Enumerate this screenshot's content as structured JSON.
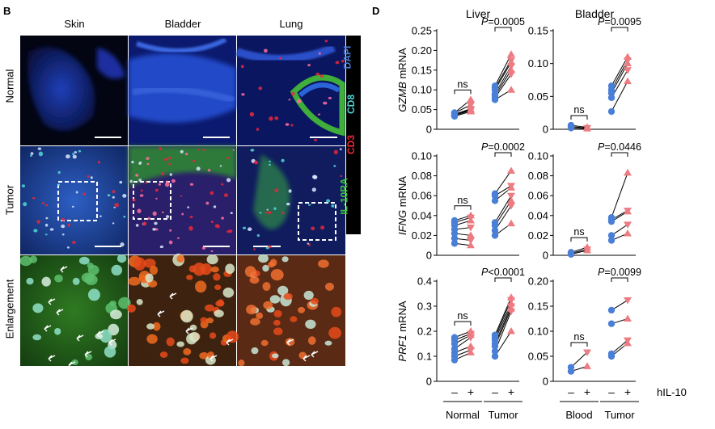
{
  "panel_b": {
    "letter": "B",
    "columns": [
      "Skin",
      "Bladder",
      "Lung"
    ],
    "rows": [
      "Normal",
      "Tumor",
      "Enlargement"
    ],
    "stains": [
      {
        "text": "DAPI",
        "color": "#4a7fd8"
      },
      {
        "text": "CD8",
        "color": "#4fd6d6"
      },
      {
        "text": "CD3",
        "color": "#e8283a"
      },
      {
        "text": "IL-10RA",
        "color": "#3ec43e"
      }
    ]
  },
  "panel_d": {
    "letter": "D",
    "column_titles": [
      "Liver",
      "Bladder"
    ],
    "treatment_label": "hIL-10",
    "minus": "–",
    "plus": "+",
    "colors": {
      "blue": "#4a7fd8",
      "red": "#ec7b82"
    }
  },
  "chart_data": [
    {
      "type": "scatter",
      "organ": "Liver",
      "gene": "GZMB",
      "ylabel_suffix": " mRNA",
      "ylim": [
        0,
        0.25
      ],
      "yticks": [
        "0",
        "0.05",
        "0.10",
        "0.15",
        "0.20",
        "0.25"
      ],
      "groups": [
        {
          "name": "Normal",
          "pvalue": "ns",
          "minus": [
            0.033,
            0.035,
            0.037,
            0.038,
            0.04,
            0.041,
            0.042
          ],
          "plus": [
            0.045,
            0.048,
            0.05,
            0.052,
            0.046,
            0.062,
            0.075
          ]
        },
        {
          "name": "Tumor",
          "pvalue": "P=0.0005",
          "minus": [
            0.075,
            0.08,
            0.085,
            0.09,
            0.1,
            0.105,
            0.11
          ],
          "plus": [
            0.1,
            0.14,
            0.15,
            0.16,
            0.17,
            0.175,
            0.19
          ]
        }
      ]
    },
    {
      "type": "scatter",
      "organ": "Bladder",
      "gene": "GZMB",
      "ylabel_suffix": " mRNA",
      "ylim": [
        0,
        0.15
      ],
      "yticks": [
        "0",
        "0.05",
        "0.10",
        "0.15"
      ],
      "groups": [
        {
          "name": "Blood",
          "pvalue": "ns",
          "minus": [
            0.002,
            0.004,
            0.006
          ],
          "plus": [
            0.001,
            0.002,
            0.003
          ]
        },
        {
          "name": "Tumor",
          "pvalue": "P=0.0095",
          "minus": [
            0.027,
            0.048,
            0.055,
            0.06,
            0.066
          ],
          "plus": [
            0.073,
            0.09,
            0.1,
            0.105,
            0.11
          ]
        }
      ]
    },
    {
      "type": "scatter",
      "organ": "Liver",
      "gene": "IFNG",
      "ylabel_suffix": " mRNA",
      "ylim": [
        0,
        0.1
      ],
      "yticks": [
        "0",
        "0.02",
        "0.04",
        "0.06",
        "0.08",
        "0.10"
      ],
      "groups": [
        {
          "name": "Normal",
          "pvalue": "ns",
          "minus": [
            0.012,
            0.017,
            0.022,
            0.026,
            0.03,
            0.033,
            0.035
          ],
          "plus": [
            0.01,
            0.015,
            0.02,
            0.028,
            0.035,
            0.038,
            0.04
          ]
        },
        {
          "name": "Tumor",
          "pvalue": "P=0.0002",
          "minus": [
            0.02,
            0.025,
            0.03,
            0.033,
            0.055,
            0.06,
            0.062
          ],
          "plus": [
            0.032,
            0.05,
            0.055,
            0.06,
            0.068,
            0.07,
            0.085
          ]
        }
      ]
    },
    {
      "type": "scatter",
      "organ": "Bladder",
      "gene": "IFNG",
      "ylabel_suffix": " mRNA",
      "ylim": [
        0,
        0.1
      ],
      "yticks": [
        "0",
        "0.02",
        "0.04",
        "0.06",
        "0.08",
        "0.10"
      ],
      "groups": [
        {
          "name": "Blood",
          "pvalue": "ns",
          "minus": [
            0.001,
            0.002,
            0.003
          ],
          "plus": [
            0.005,
            0.006,
            0.008
          ]
        },
        {
          "name": "Tumor",
          "pvalue": "P=0.0446",
          "minus": [
            0.015,
            0.02,
            0.034,
            0.036,
            0.038
          ],
          "plus": [
            0.022,
            0.031,
            0.044,
            0.045,
            0.083
          ]
        }
      ]
    },
    {
      "type": "scatter",
      "organ": "Liver",
      "gene": "PRF1",
      "ylabel_suffix": " mRNA",
      "ylim": [
        0,
        0.4
      ],
      "yticks": [
        "0",
        "0.1",
        "0.2",
        "0.3",
        "0.4"
      ],
      "groups": [
        {
          "name": "Normal",
          "pvalue": "ns",
          "minus": [
            0.085,
            0.1,
            0.115,
            0.13,
            0.15,
            0.165,
            0.175
          ],
          "plus": [
            0.115,
            0.125,
            0.14,
            0.175,
            0.185,
            0.19,
            0.2
          ]
        },
        {
          "name": "Tumor",
          "pvalue": "P<0.0001",
          "minus": [
            0.1,
            0.12,
            0.14,
            0.15,
            0.165,
            0.175,
            0.185
          ],
          "plus": [
            0.2,
            0.28,
            0.29,
            0.3,
            0.31,
            0.325,
            0.335
          ]
        }
      ]
    },
    {
      "type": "scatter",
      "organ": "Bladder",
      "gene": "PRF1",
      "ylabel_suffix": " mRNA",
      "ylim": [
        0,
        0.2
      ],
      "yticks": [
        "0",
        "0.05",
        "0.10",
        "0.15",
        "0.20"
      ],
      "groups": [
        {
          "name": "Blood",
          "pvalue": "ns",
          "minus": [
            0.02,
            0.028
          ],
          "plus": [
            0.03,
            0.058
          ]
        },
        {
          "name": "Tumor",
          "pvalue": "P=0.0099",
          "minus": [
            0.05,
            0.055,
            0.115,
            0.142
          ],
          "plus": [
            0.076,
            0.082,
            0.125,
            0.162
          ]
        }
      ]
    }
  ]
}
